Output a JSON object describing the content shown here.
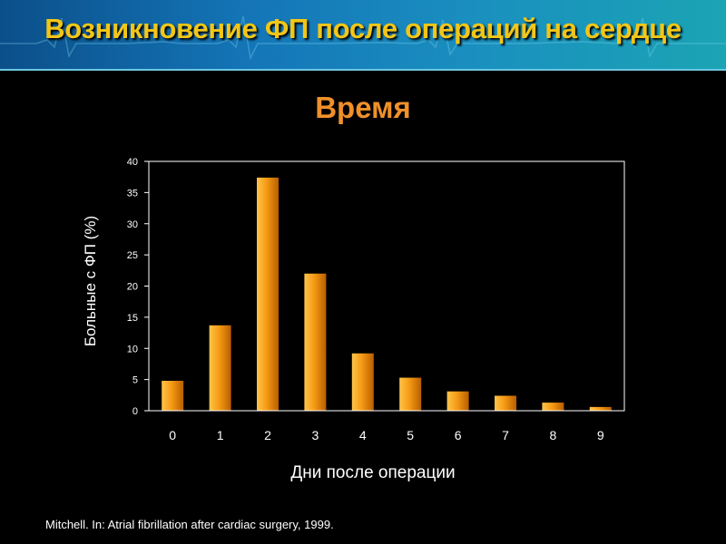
{
  "slide": {
    "title": "Возникновение ФП после операций на сердце",
    "citation": "Mitchell. In: Atrial fibrillation after cardiac surgery, 1999."
  },
  "colors": {
    "title": "#f2c618",
    "subtitle": "#f0902a",
    "bar_light": "#ffb43a",
    "bar_dark": "#c56a00",
    "axis": "#ffffff",
    "background": "#000000",
    "banner": "#1476b8"
  },
  "chart_data": {
    "type": "bar",
    "title": "Время",
    "xlabel": "Дни после операции",
    "ylabel": "Больные с ФП (%)",
    "categories": [
      "0",
      "1",
      "2",
      "3",
      "4",
      "5",
      "6",
      "7",
      "8",
      "9"
    ],
    "values": [
      4.8,
      13.7,
      37.4,
      22.0,
      9.2,
      5.3,
      3.1,
      2.4,
      1.3,
      0.6
    ],
    "ylim": [
      0,
      40
    ],
    "yticks": [
      "0",
      "5",
      "10",
      "15",
      "20",
      "25",
      "30",
      "35",
      "40"
    ],
    "grid": false,
    "legend": "none"
  }
}
